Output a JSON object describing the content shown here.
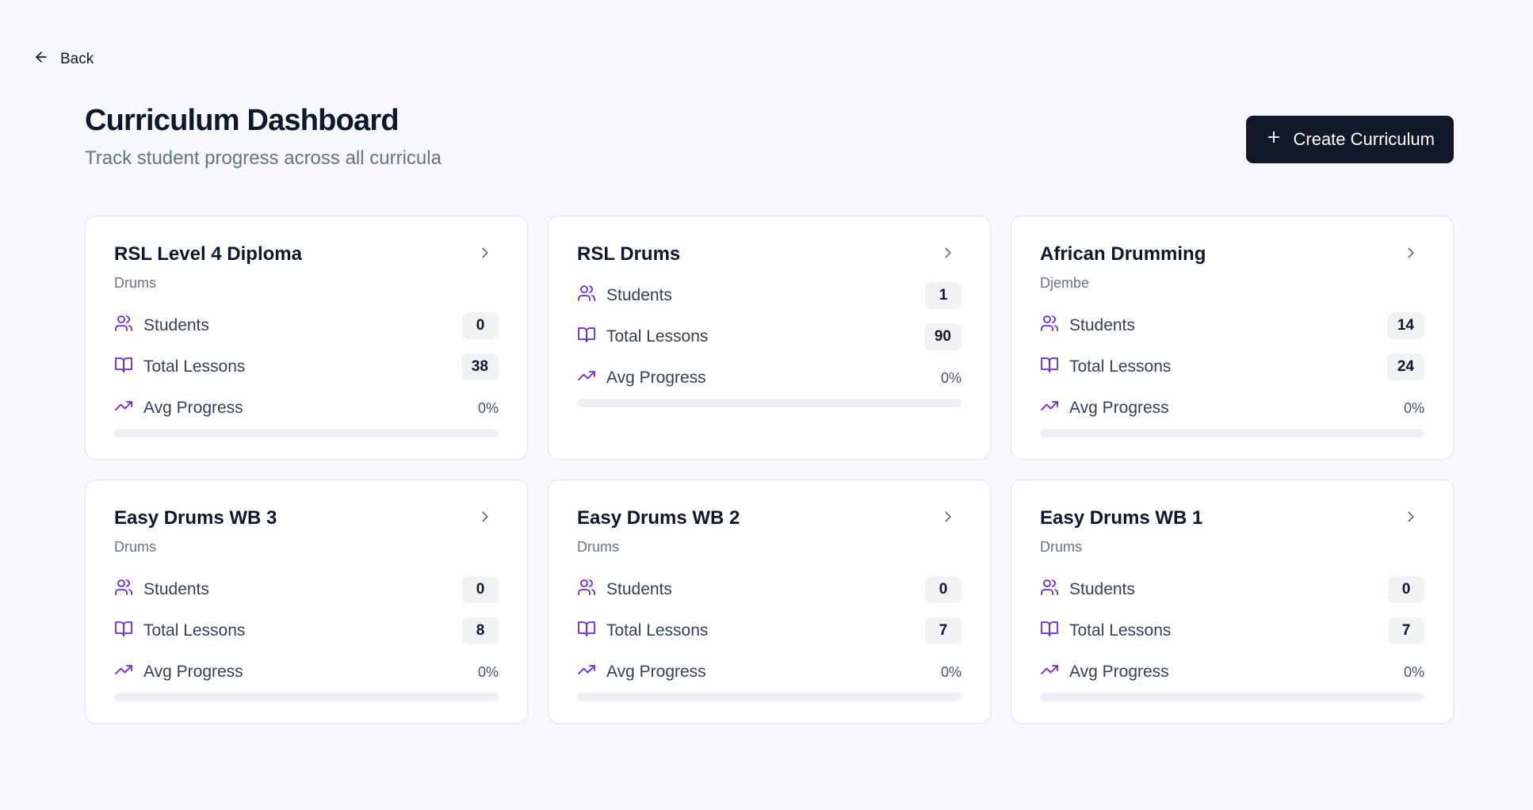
{
  "nav": {
    "back_label": "Back"
  },
  "header": {
    "title": "Curriculum Dashboard",
    "subtitle": "Track student progress across all curricula",
    "create_label": "Create Curriculum"
  },
  "labels": {
    "students": "Students",
    "total_lessons": "Total Lessons",
    "avg_progress": "Avg Progress"
  },
  "colors": {
    "accent": "#6d28d9",
    "button_bg": "#111827"
  },
  "cards": [
    {
      "title": "RSL Level 4 Diploma",
      "subtitle": "Drums",
      "students": "0",
      "lessons": "38",
      "progress_label": "0%",
      "progress": 0
    },
    {
      "title": "RSL Drums",
      "subtitle": "",
      "students": "1",
      "lessons": "90",
      "progress_label": "0%",
      "progress": 0
    },
    {
      "title": "African Drumming",
      "subtitle": "Djembe",
      "students": "14",
      "lessons": "24",
      "progress_label": "0%",
      "progress": 0
    },
    {
      "title": "Easy Drums WB 3",
      "subtitle": "Drums",
      "students": "0",
      "lessons": "8",
      "progress_label": "0%",
      "progress": 0
    },
    {
      "title": "Easy Drums WB 2",
      "subtitle": "Drums",
      "students": "0",
      "lessons": "7",
      "progress_label": "0%",
      "progress": 0
    },
    {
      "title": "Easy Drums WB 1",
      "subtitle": "Drums",
      "students": "0",
      "lessons": "7",
      "progress_label": "0%",
      "progress": 0
    }
  ]
}
